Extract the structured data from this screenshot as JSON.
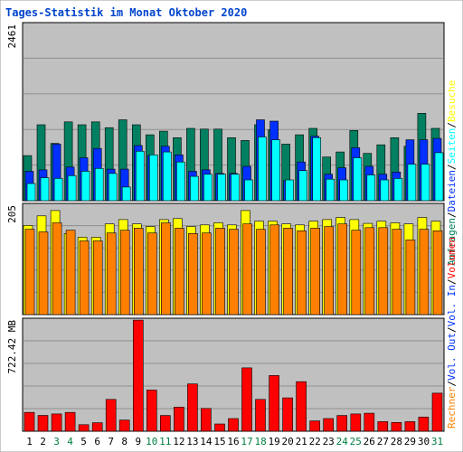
{
  "title": "Tages-Statistik im Monat Oktober 2020",
  "colors": {
    "background": "#ffffff",
    "panel": "#c0c0c0",
    "grid": "#8f8f8f",
    "title": "#0044cc",
    "hits": "#008060",
    "files": "#0030ff",
    "pages": "#00ffff",
    "visits": "#ffff00",
    "sites": "#ff8000",
    "kbytes": "#ff0000",
    "legend_sep": "#000000",
    "weekend_day": "#008040",
    "weekday": "#000000"
  },
  "chart_data": [
    {
      "type": "bar",
      "panel": "top",
      "ymax_label": "2461",
      "ylim": [
        0,
        2461
      ],
      "series": [
        {
          "name": "Anfragen",
          "values": [
            630,
            1060,
            800,
            1100,
            1060,
            1100,
            1020,
            1130,
            1060,
            920,
            970,
            880,
            1010,
            1000,
            1000,
            880,
            840,
            1060,
            990,
            790,
            920,
            1010,
            610,
            680,
            980,
            660,
            780,
            880,
            760,
            1220,
            1010
          ]
        },
        {
          "name": "Dateien",
          "values": [
            410,
            430,
            790,
            470,
            600,
            730,
            440,
            440,
            770,
            630,
            760,
            640,
            410,
            430,
            380,
            380,
            480,
            1130,
            1110,
            280,
            540,
            900,
            370,
            460,
            740,
            480,
            370,
            400,
            850,
            850,
            870
          ]
        },
        {
          "name": "Seiten",
          "values": [
            240,
            320,
            310,
            350,
            410,
            450,
            380,
            190,
            690,
            640,
            680,
            540,
            340,
            370,
            370,
            370,
            290,
            890,
            850,
            290,
            420,
            880,
            300,
            290,
            600,
            360,
            290,
            310,
            510,
            510,
            670
          ]
        }
      ]
    },
    {
      "type": "bar",
      "panel": "middle",
      "ymax_label": "205",
      "ylim": [
        0,
        205
      ],
      "series": [
        {
          "name": "Besuche",
          "values": [
            167,
            185,
            195,
            152,
            145,
            145,
            170,
            178,
            170,
            165,
            178,
            180,
            165,
            168,
            172,
            168,
            195,
            175,
            175,
            170,
            168,
            175,
            178,
            182,
            178,
            171,
            175,
            172,
            170,
            182,
            175
          ]
        },
        {
          "name": "Rechner",
          "values": [
            160,
            155,
            172,
            158,
            138,
            138,
            153,
            158,
            162,
            153,
            172,
            162,
            152,
            153,
            162,
            160,
            170,
            160,
            168,
            162,
            157,
            162,
            165,
            170,
            158,
            163,
            163,
            160,
            140,
            160,
            157
          ]
        }
      ]
    },
    {
      "type": "bar",
      "panel": "bottom",
      "ymax_label": "722.42 MB",
      "ylim": [
        0,
        722.42
      ],
      "series": [
        {
          "name": "Volumen",
          "values": [
            122,
            103,
            112,
            122,
            42,
            55,
            207,
            72,
            722,
            267,
            102,
            157,
            307,
            148,
            47,
            82,
            412,
            207,
            362,
            217,
            322,
            67,
            82,
            102,
            112,
            117,
            62,
            57,
            62,
            92,
            247
          ]
        }
      ]
    }
  ],
  "days": [
    {
      "label": "1",
      "weekend": false
    },
    {
      "label": "2",
      "weekend": false
    },
    {
      "label": "3",
      "weekend": true
    },
    {
      "label": "4",
      "weekend": true
    },
    {
      "label": "5",
      "weekend": false
    },
    {
      "label": "6",
      "weekend": false
    },
    {
      "label": "7",
      "weekend": false
    },
    {
      "label": "8",
      "weekend": false
    },
    {
      "label": "9",
      "weekend": false
    },
    {
      "label": "10",
      "weekend": true
    },
    {
      "label": "11",
      "weekend": true
    },
    {
      "label": "12",
      "weekend": false
    },
    {
      "label": "13",
      "weekend": false
    },
    {
      "label": "14",
      "weekend": false
    },
    {
      "label": "15",
      "weekend": false
    },
    {
      "label": "16",
      "weekend": false
    },
    {
      "label": "17",
      "weekend": true
    },
    {
      "label": "18",
      "weekend": true
    },
    {
      "label": "19",
      "weekend": false
    },
    {
      "label": "20",
      "weekend": false
    },
    {
      "label": "21",
      "weekend": false
    },
    {
      "label": "22",
      "weekend": false
    },
    {
      "label": "23",
      "weekend": false
    },
    {
      "label": "24",
      "weekend": true
    },
    {
      "label": "25",
      "weekend": true
    },
    {
      "label": "26",
      "weekend": false
    },
    {
      "label": "27",
      "weekend": false
    },
    {
      "label": "28",
      "weekend": false
    },
    {
      "label": "29",
      "weekend": false
    },
    {
      "label": "30",
      "weekend": false
    },
    {
      "label": "31",
      "weekend": true
    }
  ],
  "legends": {
    "top": [
      {
        "text": "Anfragen",
        "color_key": "hits"
      },
      {
        "text": "/",
        "color_key": "legend_sep"
      },
      {
        "text": "Dateien",
        "color_key": "files"
      },
      {
        "text": "/",
        "color_key": "legend_sep"
      },
      {
        "text": "Seiten",
        "color_key": "pages"
      },
      {
        "text": "/",
        "color_key": "legend_sep"
      },
      {
        "text": "Besuche",
        "color_key": "visits"
      }
    ],
    "middle": [
      {
        "text": "Rechner",
        "color_key": "sites"
      },
      {
        "text": "/",
        "color_key": "legend_sep"
      },
      {
        "text": "Vol. Out",
        "color_key": "files"
      },
      {
        "text": "/",
        "color_key": "legend_sep"
      },
      {
        "text": "Vol. In",
        "color_key": "files"
      },
      {
        "text": "/",
        "color_key": "legend_sep"
      },
      {
        "text": "Volumen",
        "color_key": "kbytes"
      }
    ]
  }
}
